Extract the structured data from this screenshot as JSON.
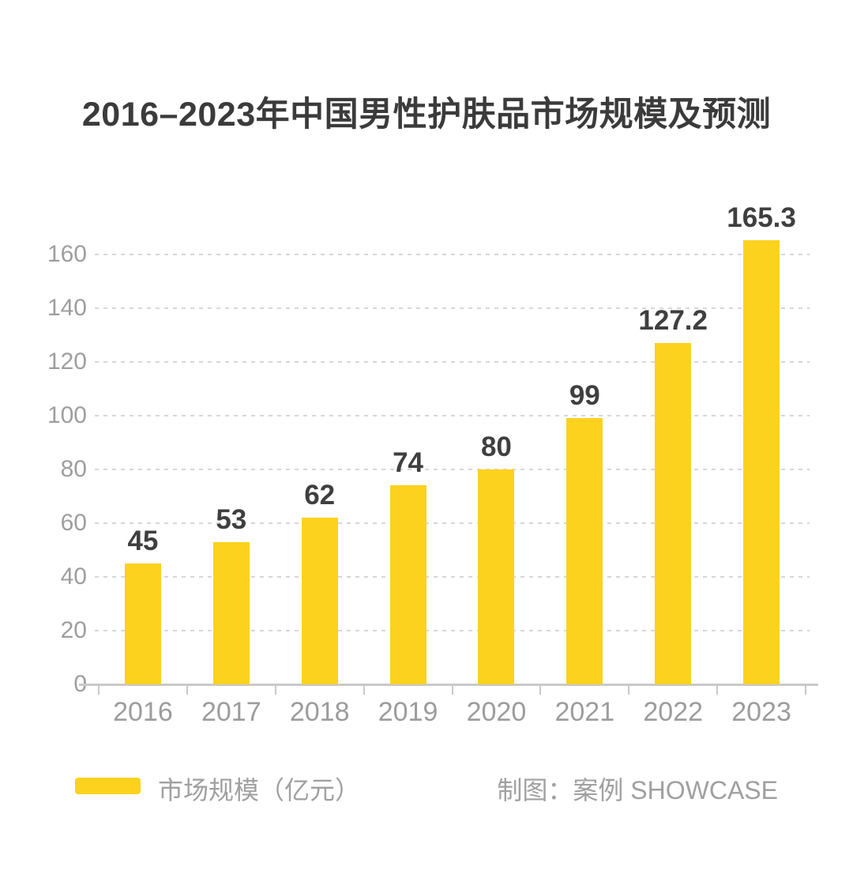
{
  "title": "2016–2023年中国男性护肤品市场规模及预测",
  "chart_data": {
    "type": "bar",
    "title": "2016–2023年中国男性护肤品市场规模及预测",
    "categories": [
      "2016",
      "2017",
      "2018",
      "2019",
      "2020",
      "2021",
      "2022",
      "2023"
    ],
    "series": [
      {
        "name": "市场规模（亿元）",
        "values": [
          45,
          53,
          62,
          74,
          80,
          99,
          127.2,
          165.3
        ]
      }
    ],
    "value_labels": [
      "45",
      "53",
      "62",
      "74",
      "80",
      "99",
      "127.2",
      "165.3"
    ],
    "xlabel": "",
    "ylabel": "",
    "ylim": [
      0,
      160
    ],
    "yticks": [
      0,
      20,
      40,
      60,
      80,
      100,
      120,
      140,
      160
    ],
    "grid": "horizontal-dashed",
    "legend_position": "bottom-left",
    "bar_color": "#fcd21e"
  },
  "legend": {
    "label": "市场规模（亿元）"
  },
  "credit": "制图：案例 SHOWCASE",
  "colors": {
    "background": "#ffffff",
    "bar": "#fcd21e",
    "title_text": "#3b3b3b",
    "value_label_text": "#3f3f3f",
    "axis_text": "#9e9e9e",
    "gridline": "#d7d7d7",
    "axis_line": "#c9c9c9",
    "legend_text": "#a0a0a0"
  }
}
